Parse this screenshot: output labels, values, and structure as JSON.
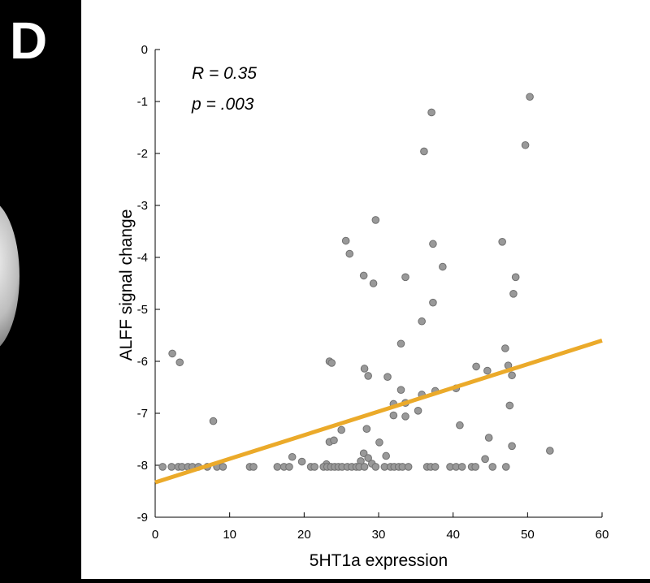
{
  "panel_label": "D",
  "chart_data": {
    "type": "scatter",
    "xlabel": "5HT1a expression",
    "ylabel": "ALFF signal change",
    "xlim": [
      0,
      60
    ],
    "ylim": [
      -9,
      0
    ],
    "xticks": [
      0,
      10,
      20,
      30,
      40,
      50,
      60
    ],
    "yticks": [
      0,
      -1,
      -2,
      -3,
      -4,
      -5,
      -6,
      -7,
      -8,
      -9
    ],
    "annotations": [
      "R = 0.35",
      "p = .003"
    ],
    "grid": false,
    "colors": {
      "points": "#999999",
      "point_edge": "#707070",
      "fit_line": "#EBAA2A"
    },
    "fit_line": {
      "x": [
        0,
        60
      ],
      "y": [
        -8.33,
        -5.6
      ]
    },
    "points": [
      {
        "x": 2.3,
        "y": -5.85
      },
      {
        "x": 3.3,
        "y": -6.02
      },
      {
        "x": 7.8,
        "y": -7.15
      },
      {
        "x": 23.4,
        "y": -6.0
      },
      {
        "x": 23.7,
        "y": -6.03
      },
      {
        "x": 25.6,
        "y": -3.68
      },
      {
        "x": 26.1,
        "y": -3.93
      },
      {
        "x": 28.0,
        "y": -4.35
      },
      {
        "x": 29.3,
        "y": -4.5
      },
      {
        "x": 29.6,
        "y": -3.28
      },
      {
        "x": 28.1,
        "y": -6.14
      },
      {
        "x": 28.6,
        "y": -6.28
      },
      {
        "x": 31.2,
        "y": -6.3
      },
      {
        "x": 33.0,
        "y": -5.66
      },
      {
        "x": 33.6,
        "y": -4.38
      },
      {
        "x": 35.8,
        "y": -5.23
      },
      {
        "x": 36.1,
        "y": -1.96
      },
      {
        "x": 37.1,
        "y": -1.21
      },
      {
        "x": 37.3,
        "y": -3.74
      },
      {
        "x": 37.3,
        "y": -4.87
      },
      {
        "x": 38.6,
        "y": -4.18
      },
      {
        "x": 46.6,
        "y": -3.7
      },
      {
        "x": 48.1,
        "y": -4.7
      },
      {
        "x": 48.4,
        "y": -4.38
      },
      {
        "x": 49.7,
        "y": -1.84
      },
      {
        "x": 50.3,
        "y": -0.91
      },
      {
        "x": 47.0,
        "y": -5.75
      },
      {
        "x": 47.4,
        "y": -6.08
      },
      {
        "x": 47.9,
        "y": -6.27
      },
      {
        "x": 43.1,
        "y": -6.1
      },
      {
        "x": 44.6,
        "y": -6.18
      },
      {
        "x": 40.4,
        "y": -6.52
      },
      {
        "x": 37.6,
        "y": -6.57
      },
      {
        "x": 35.8,
        "y": -6.64
      },
      {
        "x": 33.6,
        "y": -6.8
      },
      {
        "x": 32.0,
        "y": -6.82
      },
      {
        "x": 33.0,
        "y": -6.55
      },
      {
        "x": 32.0,
        "y": -7.04
      },
      {
        "x": 33.6,
        "y": -7.06
      },
      {
        "x": 35.3,
        "y": -6.95
      },
      {
        "x": 40.9,
        "y": -7.23
      },
      {
        "x": 47.6,
        "y": -6.85
      },
      {
        "x": 28.4,
        "y": -7.3
      },
      {
        "x": 25.0,
        "y": -7.32
      },
      {
        "x": 23.4,
        "y": -7.55
      },
      {
        "x": 24.0,
        "y": -7.52
      },
      {
        "x": 30.1,
        "y": -7.56
      },
      {
        "x": 44.8,
        "y": -7.47
      },
      {
        "x": 47.9,
        "y": -7.63
      },
      {
        "x": 53.0,
        "y": -7.72
      },
      {
        "x": 28.0,
        "y": -7.77
      },
      {
        "x": 28.6,
        "y": -7.86
      },
      {
        "x": 31.0,
        "y": -7.82
      },
      {
        "x": 18.4,
        "y": -7.84
      },
      {
        "x": 19.7,
        "y": -7.93
      },
      {
        "x": 44.3,
        "y": -7.88
      },
      {
        "x": 27.6,
        "y": -7.92
      },
      {
        "x": 29.1,
        "y": -7.97
      },
      {
        "x": 23.0,
        "y": -7.98
      },
      {
        "x": 1.0,
        "y": -8.03
      },
      {
        "x": 2.2,
        "y": -8.03
      },
      {
        "x": 3.1,
        "y": -8.03
      },
      {
        "x": 3.6,
        "y": -8.03
      },
      {
        "x": 4.4,
        "y": -8.03
      },
      {
        "x": 5.0,
        "y": -8.03
      },
      {
        "x": 5.8,
        "y": -8.03
      },
      {
        "x": 7.0,
        "y": -8.03
      },
      {
        "x": 8.3,
        "y": -8.03
      },
      {
        "x": 9.1,
        "y": -8.03
      },
      {
        "x": 12.7,
        "y": -8.03
      },
      {
        "x": 13.2,
        "y": -8.03
      },
      {
        "x": 16.4,
        "y": -8.03
      },
      {
        "x": 17.3,
        "y": -8.03
      },
      {
        "x": 18.0,
        "y": -8.03
      },
      {
        "x": 20.9,
        "y": -8.03
      },
      {
        "x": 21.4,
        "y": -8.03
      },
      {
        "x": 22.6,
        "y": -8.03
      },
      {
        "x": 23.1,
        "y": -8.03
      },
      {
        "x": 23.6,
        "y": -8.03
      },
      {
        "x": 24.1,
        "y": -8.03
      },
      {
        "x": 24.6,
        "y": -8.03
      },
      {
        "x": 25.1,
        "y": -8.03
      },
      {
        "x": 25.8,
        "y": -8.03
      },
      {
        "x": 26.4,
        "y": -8.03
      },
      {
        "x": 27.0,
        "y": -8.03
      },
      {
        "x": 27.4,
        "y": -8.03
      },
      {
        "x": 28.1,
        "y": -8.03
      },
      {
        "x": 29.6,
        "y": -8.03
      },
      {
        "x": 30.8,
        "y": -8.03
      },
      {
        "x": 31.6,
        "y": -8.03
      },
      {
        "x": 32.1,
        "y": -8.03
      },
      {
        "x": 32.7,
        "y": -8.03
      },
      {
        "x": 33.2,
        "y": -8.03
      },
      {
        "x": 34.0,
        "y": -8.03
      },
      {
        "x": 36.5,
        "y": -8.03
      },
      {
        "x": 37.0,
        "y": -8.03
      },
      {
        "x": 37.6,
        "y": -8.03
      },
      {
        "x": 39.6,
        "y": -8.03
      },
      {
        "x": 40.4,
        "y": -8.03
      },
      {
        "x": 41.2,
        "y": -8.03
      },
      {
        "x": 42.5,
        "y": -8.03
      },
      {
        "x": 43.0,
        "y": -8.03
      },
      {
        "x": 45.3,
        "y": -8.03
      },
      {
        "x": 47.1,
        "y": -8.03
      }
    ]
  }
}
